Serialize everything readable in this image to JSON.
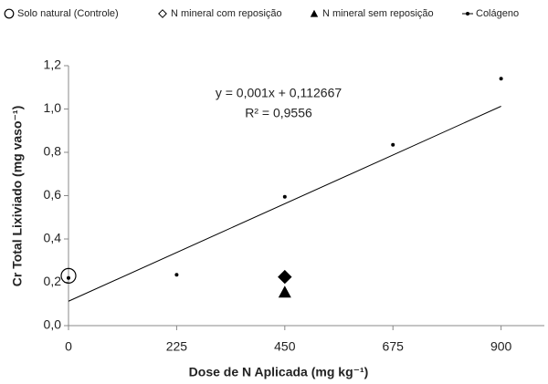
{
  "chart_data": {
    "type": "scatter",
    "xlabel": "Dose de N Aplicada (mg kg⁻¹)",
    "ylabel": "Cr Total Lixiviado (mg vaso⁻¹)",
    "xlim": [
      0,
      990
    ],
    "xticks": [
      0,
      225,
      450,
      675,
      900
    ],
    "ylim": [
      0,
      1.2
    ],
    "yticks": [
      {
        "value": 0,
        "label": "0,0"
      },
      {
        "value": 0.2,
        "label": "0,2"
      },
      {
        "value": 0.4,
        "label": "0,4"
      },
      {
        "value": 0.6,
        "label": "0,6"
      },
      {
        "value": 0.8,
        "label": "0,8"
      },
      {
        "value": 1.0,
        "label": "1,0"
      },
      {
        "value": 1.2,
        "label": "1,2"
      }
    ],
    "series": [
      {
        "name": "Solo natural (Controle)",
        "marker": "circle-open",
        "color": "#000000",
        "x": [
          0
        ],
        "values": [
          0.23
        ]
      },
      {
        "name": "N mineral com reposição",
        "marker": "diamond",
        "color": "#000000",
        "x": [
          450
        ],
        "values": [
          0.225
        ]
      },
      {
        "name": "N mineral sem reposição",
        "marker": "triangle",
        "color": "#000000",
        "x": [
          450
        ],
        "values": [
          0.155
        ]
      },
      {
        "name": "Colágeno",
        "marker": "dot",
        "color": "#000000",
        "x": [
          0,
          225,
          450,
          675,
          900
        ],
        "values": [
          0.22,
          0.235,
          0.595,
          0.835,
          1.14
        ]
      }
    ],
    "trendline": {
      "slope": 0.001,
      "intercept": 0.112667,
      "label": "y = 0,001x + 0,112667",
      "r2_label": "R² = 0,9556"
    }
  }
}
